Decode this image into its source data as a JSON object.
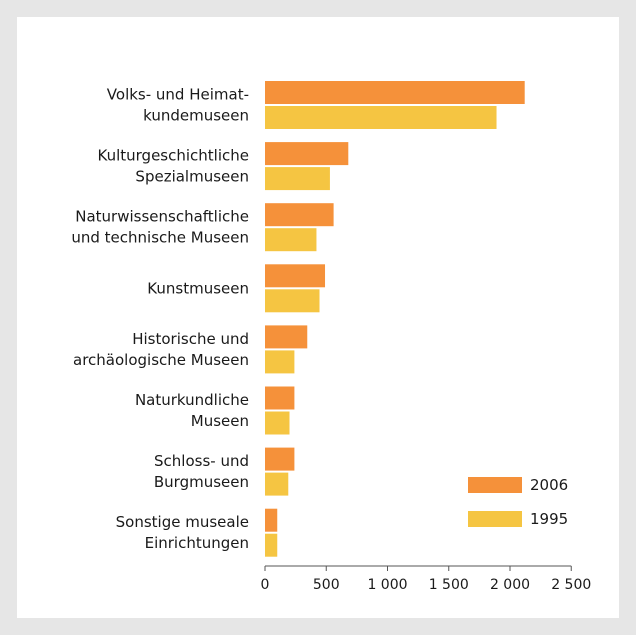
{
  "chart_data": {
    "type": "bar",
    "orientation": "horizontal",
    "title": "",
    "xlabel": "",
    "ylabel": "",
    "categories": [
      [
        "Volks- und Heimat-",
        "kundemuseen"
      ],
      [
        "Kulturgeschichtliche",
        "Spezialmuseen"
      ],
      [
        "Naturwissenschaftliche",
        "und technische Museen"
      ],
      [
        "Kunstmuseen"
      ],
      [
        "Historische und",
        "archäologische Museen"
      ],
      [
        "Naturkundliche",
        "Museen"
      ],
      [
        "Schloss- und",
        "Burgmuseen"
      ],
      [
        "Sonstige museale",
        "Einrichtungen"
      ]
    ],
    "series": [
      {
        "name": "2006",
        "color": "#f5913a",
        "values": [
          2120,
          680,
          560,
          490,
          345,
          240,
          240,
          100
        ]
      },
      {
        "name": "1995",
        "color": "#f5c542",
        "values": [
          1890,
          530,
          420,
          445,
          240,
          200,
          190,
          100
        ]
      }
    ],
    "xlim": [
      0,
      2500
    ],
    "xticks": [
      0,
      500,
      1000,
      1500,
      2000,
      2500
    ],
    "xtick_labels": [
      "0",
      "500",
      "1 000",
      "1 500",
      "2 000",
      "2 500"
    ],
    "grid": false,
    "legend_position": "bottom-right"
  }
}
